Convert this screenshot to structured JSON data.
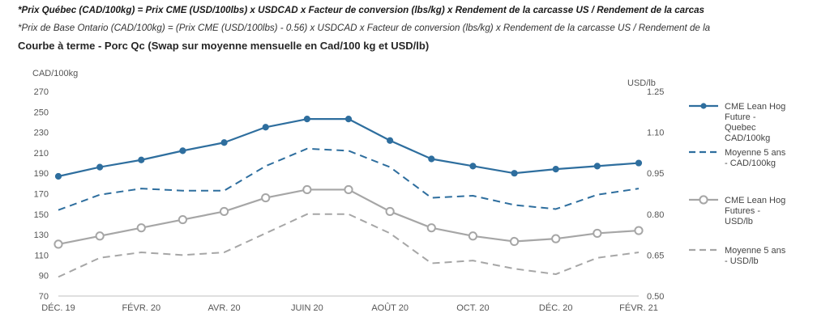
{
  "notes": {
    "line1": "*Prix Québec (CAD/100kg) = Prix CME (USD/100lbs) x USDCAD x Facteur de conversion (lbs/kg) x Rendement de la carcasse US / Rendement de la carcas",
    "line2": "*Prix de Base Ontario (CAD/100kg) = (Prix CME (USD/100lbs) - 0.56) x USDCAD x Facteur de conversion (lbs/kg) x Rendement de la carcasse US / Rendement de la"
  },
  "chart_data": {
    "type": "line",
    "title": "Courbe à terme - Porc Qc (Swap sur moyenne mensuelle en Cad/100 kg et USD/lb)",
    "ylabel_left": "CAD/100kg",
    "ylabel_right": "USD/lb",
    "ylim_left": [
      70,
      270
    ],
    "ylim_right": [
      0.5,
      1.25
    ],
    "yticks_left": [
      "270",
      "250",
      "230",
      "210",
      "190",
      "170",
      "150",
      "130",
      "110",
      "90",
      "70"
    ],
    "yticks_right": [
      "1.25",
      "1.10",
      "0.95",
      "0.80",
      "0.65",
      "0.50"
    ],
    "x_ticks": [
      "DÉC. 19",
      "FÉVR. 20",
      "AVR. 20",
      "JUIN 20",
      "AOÛT 20",
      "OCT. 20",
      "DÉC. 20",
      "FÉVR. 21"
    ],
    "grid": false,
    "legend_position": "right",
    "series": [
      {
        "name": "CME Lean Hog Future - Quebec CAD/100kg",
        "axis": "left",
        "style": "solid-marker-filled",
        "color": "#2e6e9e",
        "values": [
          187,
          196,
          203,
          212,
          220,
          235,
          243,
          243,
          222,
          204,
          197,
          190,
          194,
          197,
          200
        ]
      },
      {
        "name": "Moyenne 5 ans - CAD/100kg",
        "axis": "left",
        "style": "dashed",
        "color": "#2e6e9e",
        "values": [
          154,
          169,
          175,
          173,
          173,
          197,
          214,
          212,
          196,
          166,
          168,
          159,
          155,
          169,
          175
        ]
      },
      {
        "name": "CME Lean Hog Futures - USD/lb",
        "axis": "right",
        "style": "solid-marker-hollow",
        "color": "#a6a6a6",
        "values": [
          0.69,
          0.72,
          0.75,
          0.78,
          0.81,
          0.86,
          0.89,
          0.89,
          0.81,
          0.75,
          0.72,
          0.7,
          0.71,
          0.73,
          0.74
        ]
      },
      {
        "name": "Moyenne 5 ans - USD/lb",
        "axis": "right",
        "style": "dashed",
        "color": "#a6a6a6",
        "values": [
          0.57,
          0.64,
          0.66,
          0.65,
          0.66,
          0.73,
          0.8,
          0.8,
          0.73,
          0.62,
          0.63,
          0.6,
          0.58,
          0.64,
          0.66
        ]
      }
    ],
    "legend": [
      {
        "lines": [
          "CME Lean Hog",
          "Future -",
          "Quebec",
          "CAD/100kg"
        ]
      },
      {
        "lines": [
          "Moyenne 5 ans",
          "- CAD/100kg"
        ]
      },
      {
        "lines": [
          "CME Lean Hog",
          "Futures -",
          "USD/lb"
        ]
      },
      {
        "lines": [
          "Moyenne 5 ans",
          "- USD/lb"
        ]
      }
    ]
  }
}
